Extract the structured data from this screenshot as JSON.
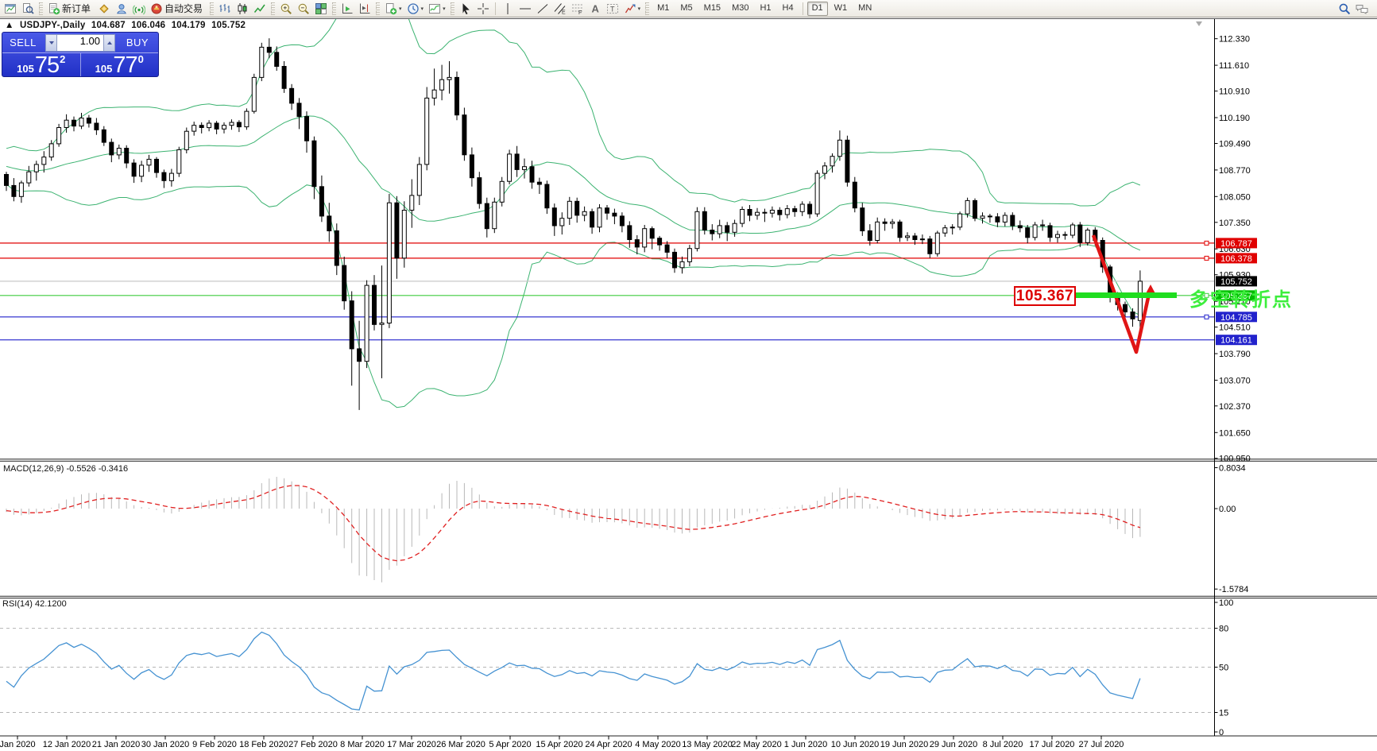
{
  "toolbar": {
    "groups": [
      {
        "name": "system",
        "items": [
          {
            "icon": "chart-window"
          },
          {
            "icon": "print-preview"
          }
        ]
      },
      {
        "name": "trade",
        "items": [
          {
            "icon": "new-order",
            "label": "新订单"
          },
          {
            "icon": "chart-wizard"
          },
          {
            "icon": "profiles"
          },
          {
            "icon": "signals"
          },
          {
            "icon": "auto-trading",
            "label": "自动交易"
          }
        ]
      },
      {
        "name": "chart-type",
        "items": [
          {
            "icon": "bar-chart"
          },
          {
            "icon": "candlestick-chart"
          },
          {
            "icon": "line-chart"
          }
        ]
      },
      {
        "name": "zoom",
        "items": [
          {
            "icon": "zoom-in"
          },
          {
            "icon": "zoom-out"
          },
          {
            "icon": "tile-windows"
          }
        ]
      },
      {
        "name": "scroll",
        "items": [
          {
            "icon": "auto-scroll"
          },
          {
            "icon": "chart-shift"
          }
        ]
      },
      {
        "name": "menus",
        "items": [
          {
            "icon": "new-order-menu",
            "caret": true
          },
          {
            "icon": "clock",
            "caret": true
          },
          {
            "icon": "indicators",
            "caret": true
          }
        ]
      },
      {
        "name": "objects",
        "items": [
          {
            "icon": "cursor"
          },
          {
            "icon": "crosshair"
          },
          {
            "icon": "sep"
          },
          {
            "icon": "vertical-line"
          },
          {
            "icon": "horizontal-line"
          },
          {
            "icon": "trend-line"
          },
          {
            "icon": "equidistant-channel"
          },
          {
            "icon": "fibonacci"
          },
          {
            "icon": "text"
          },
          {
            "icon": "text-label"
          },
          {
            "icon": "arrows-menu",
            "caret": true
          }
        ]
      }
    ],
    "timeframes": [
      "M1",
      "M5",
      "M15",
      "M30",
      "H1",
      "H4",
      "D1",
      "W1",
      "MN"
    ],
    "active_timeframe": "D1",
    "right_icons": [
      "search",
      "chat"
    ]
  },
  "symbol_line": {
    "symbol": "USDJPY-,Daily",
    "open": "104.687",
    "high": "106.046",
    "low": "104.179",
    "close": "105.752"
  },
  "trade_panel": {
    "sell_label": "SELL",
    "buy_label": "BUY",
    "volume": "1.00",
    "sell_price": {
      "prefix": "105",
      "main": "75",
      "sup": "2"
    },
    "buy_price": {
      "prefix": "105",
      "main": "77",
      "sup": "0"
    }
  },
  "chart_data": {
    "type": "candlestick",
    "symbol": "USDJPY-",
    "timeframe": "Daily",
    "ohlc_current": {
      "open": 104.687,
      "high": 106.046,
      "low": 104.179,
      "close": 105.752
    },
    "y_axis_ticks": [
      "112.330",
      "111.610",
      "110.910",
      "110.190",
      "109.490",
      "108.770",
      "108.050",
      "107.350",
      "106.630",
      "105.930",
      "105.210",
      "104.510",
      "103.790",
      "103.070",
      "102.370",
      "101.650",
      "100.950"
    ],
    "x_labels": [
      "Jan 2020",
      "12 Jan 2020",
      "21 Jan 2020",
      "30 Jan 2020",
      "9 Feb 2020",
      "18 Feb 2020",
      "27 Feb 2020",
      "8 Mar 2020",
      "17 Mar 2020",
      "26 Mar 2020",
      "5 Apr 2020",
      "15 Apr 2020",
      "24 Apr 2020",
      "4 May 2020",
      "13 May 2020",
      "22 May 2020",
      "1 Jun 2020",
      "10 Jun 2020",
      "19 Jun 2020",
      "29 Jun 2020",
      "8 Jul 2020",
      "17 Jul 2020",
      "27 Jul 2020"
    ],
    "candles": [
      [
        108.65,
        108.72,
        108.2,
        108.35
      ],
      [
        108.35,
        108.55,
        107.92,
        108.05
      ],
      [
        108.05,
        108.48,
        107.88,
        108.42
      ],
      [
        108.42,
        108.88,
        108.32,
        108.72
      ],
      [
        108.72,
        109.02,
        108.48,
        108.92
      ],
      [
        108.92,
        109.28,
        108.7,
        109.12
      ],
      [
        109.12,
        109.58,
        109.02,
        109.48
      ],
      [
        109.48,
        110.02,
        109.4,
        109.92
      ],
      [
        109.92,
        110.28,
        109.78,
        110.12
      ],
      [
        110.12,
        110.22,
        109.82,
        109.96
      ],
      [
        109.96,
        110.32,
        109.88,
        110.18
      ],
      [
        110.18,
        110.26,
        109.92,
        110.04
      ],
      [
        110.04,
        110.18,
        109.72,
        109.86
      ],
      [
        109.86,
        109.96,
        109.42,
        109.52
      ],
      [
        109.52,
        109.62,
        108.98,
        109.18
      ],
      [
        109.18,
        109.46,
        109.06,
        109.36
      ],
      [
        109.36,
        109.44,
        108.82,
        108.96
      ],
      [
        108.96,
        109.06,
        108.42,
        108.6
      ],
      [
        108.6,
        109.02,
        108.44,
        108.9
      ],
      [
        108.9,
        109.18,
        108.72,
        109.06
      ],
      [
        109.06,
        109.12,
        108.56,
        108.7
      ],
      [
        108.7,
        108.78,
        108.28,
        108.48
      ],
      [
        108.48,
        108.8,
        108.32,
        108.68
      ],
      [
        108.68,
        109.4,
        108.58,
        109.32
      ],
      [
        109.32,
        109.92,
        109.22,
        109.82
      ],
      [
        109.82,
        110.08,
        109.7,
        109.98
      ],
      [
        109.98,
        110.06,
        109.76,
        109.92
      ],
      [
        109.92,
        110.12,
        109.82,
        110.04
      ],
      [
        110.04,
        110.1,
        109.74,
        109.88
      ],
      [
        109.88,
        110.06,
        109.76,
        109.98
      ],
      [
        109.98,
        110.14,
        109.86,
        110.06
      ],
      [
        110.06,
        110.12,
        109.8,
        109.94
      ],
      [
        109.94,
        110.44,
        109.86,
        110.36
      ],
      [
        110.36,
        111.38,
        110.3,
        111.28
      ],
      [
        111.28,
        112.22,
        111.18,
        112.1
      ],
      [
        112.1,
        112.34,
        111.8,
        111.96
      ],
      [
        111.96,
        112.12,
        111.46,
        111.58
      ],
      [
        111.58,
        111.72,
        110.86,
        110.98
      ],
      [
        110.98,
        111.1,
        110.4,
        110.58
      ],
      [
        110.58,
        110.72,
        109.88,
        110.22
      ],
      [
        110.22,
        110.36,
        109.24,
        109.56
      ],
      [
        109.56,
        109.68,
        107.98,
        108.32
      ],
      [
        108.32,
        108.62,
        107.36,
        107.52
      ],
      [
        107.52,
        107.88,
        106.82,
        107.12
      ],
      [
        107.12,
        107.32,
        105.92,
        106.18
      ],
      [
        106.18,
        106.42,
        104.98,
        105.22
      ],
      [
        105.22,
        105.48,
        102.92,
        103.92
      ],
      [
        103.92,
        104.68,
        102.26,
        103.58
      ],
      [
        103.58,
        105.78,
        103.4,
        105.64
      ],
      [
        105.64,
        105.92,
        104.42,
        104.58
      ],
      [
        104.58,
        106.18,
        103.12,
        104.62
      ],
      [
        104.62,
        108.12,
        104.48,
        107.88
      ],
      [
        107.88,
        108.06,
        105.82,
        106.38
      ],
      [
        106.38,
        107.92,
        106.12,
        107.68
      ],
      [
        107.68,
        108.52,
        107.2,
        108.08
      ],
      [
        108.08,
        109.12,
        107.82,
        108.92
      ],
      [
        108.92,
        111.02,
        108.76,
        110.72
      ],
      [
        110.72,
        111.52,
        110.52,
        110.94
      ],
      [
        110.94,
        111.62,
        110.66,
        111.22
      ],
      [
        111.22,
        111.72,
        110.84,
        111.28
      ],
      [
        111.28,
        111.44,
        110.12,
        110.26
      ],
      [
        110.26,
        110.46,
        109.02,
        109.18
      ],
      [
        109.18,
        109.38,
        108.32,
        108.56
      ],
      [
        108.56,
        108.72,
        107.72,
        107.86
      ],
      [
        107.86,
        108.02,
        106.94,
        107.18
      ],
      [
        107.18,
        108.02,
        107.06,
        107.9
      ],
      [
        107.9,
        108.58,
        107.78,
        108.46
      ],
      [
        108.46,
        109.32,
        108.38,
        109.2
      ],
      [
        109.2,
        109.42,
        108.58,
        108.78
      ],
      [
        108.78,
        109.08,
        108.54,
        108.86
      ],
      [
        108.86,
        109.02,
        108.26,
        108.44
      ],
      [
        108.44,
        108.56,
        108.12,
        108.38
      ],
      [
        108.38,
        108.48,
        107.58,
        107.74
      ],
      [
        107.74,
        107.86,
        106.98,
        107.26
      ],
      [
        107.26,
        107.62,
        107.02,
        107.46
      ],
      [
        107.46,
        108.04,
        107.28,
        107.92
      ],
      [
        107.92,
        108.02,
        107.34,
        107.54
      ],
      [
        107.54,
        107.78,
        107.38,
        107.64
      ],
      [
        107.64,
        107.72,
        107.04,
        107.22
      ],
      [
        107.22,
        107.84,
        107.08,
        107.74
      ],
      [
        107.74,
        107.82,
        107.42,
        107.6
      ],
      [
        107.6,
        107.72,
        107.3,
        107.52
      ],
      [
        107.52,
        107.62,
        107.08,
        107.26
      ],
      [
        107.26,
        107.38,
        106.66,
        106.88
      ],
      [
        106.88,
        107.0,
        106.48,
        106.68
      ],
      [
        106.68,
        107.28,
        106.54,
        107.18
      ],
      [
        107.18,
        107.24,
        106.62,
        106.92
      ],
      [
        106.92,
        106.98,
        106.58,
        106.74
      ],
      [
        106.74,
        106.84,
        106.38,
        106.54
      ],
      [
        106.54,
        106.64,
        105.98,
        106.12
      ],
      [
        106.12,
        106.42,
        105.96,
        106.28
      ],
      [
        106.28,
        106.74,
        106.16,
        106.64
      ],
      [
        106.64,
        107.76,
        106.56,
        107.64
      ],
      [
        107.64,
        107.76,
        107.02,
        107.14
      ],
      [
        107.14,
        107.3,
        106.86,
        107.04
      ],
      [
        107.04,
        107.42,
        106.92,
        107.26
      ],
      [
        107.26,
        107.36,
        106.84,
        107.08
      ],
      [
        107.08,
        107.42,
        106.96,
        107.32
      ],
      [
        107.32,
        107.78,
        107.22,
        107.7
      ],
      [
        107.7,
        107.82,
        107.38,
        107.54
      ],
      [
        107.54,
        107.74,
        107.42,
        107.62
      ],
      [
        107.62,
        107.72,
        107.36,
        107.6
      ],
      [
        107.6,
        107.78,
        107.48,
        107.68
      ],
      [
        107.68,
        107.76,
        107.4,
        107.56
      ],
      [
        107.56,
        107.82,
        107.46,
        107.72
      ],
      [
        107.72,
        107.8,
        107.5,
        107.64
      ],
      [
        107.64,
        107.92,
        107.52,
        107.84
      ],
      [
        107.84,
        107.92,
        107.46,
        107.58
      ],
      [
        107.58,
        108.76,
        107.5,
        108.68
      ],
      [
        108.68,
        108.98,
        108.52,
        108.88
      ],
      [
        108.88,
        109.22,
        108.7,
        109.14
      ],
      [
        109.14,
        109.84,
        109.02,
        109.58
      ],
      [
        109.58,
        109.7,
        108.32,
        108.44
      ],
      [
        108.44,
        108.58,
        107.62,
        107.74
      ],
      [
        107.74,
        107.88,
        106.98,
        107.12
      ],
      [
        107.12,
        107.3,
        106.72,
        106.86
      ],
      [
        106.86,
        107.48,
        106.78,
        107.36
      ],
      [
        107.36,
        107.46,
        107.12,
        107.32
      ],
      [
        107.32,
        107.44,
        107.18,
        107.36
      ],
      [
        107.36,
        107.42,
        106.82,
        106.94
      ],
      [
        106.94,
        107.08,
        106.84,
        106.98
      ],
      [
        106.98,
        107.06,
        106.74,
        106.88
      ],
      [
        106.88,
        107.02,
        106.76,
        106.9
      ],
      [
        106.9,
        106.98,
        106.38,
        106.5
      ],
      [
        106.5,
        107.12,
        106.42,
        107.06
      ],
      [
        107.06,
        107.28,
        106.96,
        107.2
      ],
      [
        107.2,
        107.3,
        107.02,
        107.22
      ],
      [
        107.22,
        107.64,
        107.14,
        107.58
      ],
      [
        107.58,
        108.02,
        107.48,
        107.94
      ],
      [
        107.94,
        108.0,
        107.38,
        107.46
      ],
      [
        107.46,
        107.62,
        107.32,
        107.52
      ],
      [
        107.52,
        107.58,
        107.34,
        107.5
      ],
      [
        107.5,
        107.6,
        107.22,
        107.36
      ],
      [
        107.36,
        107.62,
        107.24,
        107.54
      ],
      [
        107.54,
        107.62,
        107.14,
        107.26
      ],
      [
        107.26,
        107.4,
        107.08,
        107.2
      ],
      [
        107.2,
        107.28,
        106.78,
        106.94
      ],
      [
        106.94,
        107.36,
        106.86,
        107.28
      ],
      [
        107.28,
        107.42,
        107.12,
        107.26
      ],
      [
        107.26,
        107.34,
        106.82,
        106.94
      ],
      [
        106.94,
        107.12,
        106.8,
        107.02
      ],
      [
        107.02,
        107.1,
        106.88,
        107.0
      ],
      [
        107.0,
        107.34,
        106.92,
        107.28
      ],
      [
        107.28,
        107.36,
        106.68,
        106.8
      ],
      [
        106.8,
        107.2,
        106.72,
        107.14
      ],
      [
        107.14,
        107.22,
        106.72,
        106.86
      ],
      [
        106.86,
        106.94,
        105.98,
        106.14
      ],
      [
        106.14,
        106.2,
        105.18,
        105.38
      ],
      [
        105.38,
        105.46,
        104.96,
        105.12
      ],
      [
        105.12,
        105.2,
        104.78,
        104.92
      ],
      [
        104.92,
        105.02,
        104.52,
        104.73
      ],
      [
        104.687,
        106.046,
        104.179,
        105.752
      ]
    ],
    "price_lines": [
      {
        "price": 106.787,
        "color": "#e00000",
        "badge": "#e00000",
        "badge_text": "106.787",
        "anchor": true
      },
      {
        "price": 106.378,
        "color": "#e00000",
        "badge": "#e00000",
        "badge_text": "106.378",
        "anchor": true
      },
      {
        "price": 105.752,
        "color": "#c9c9c9",
        "badge": "#000000",
        "badge_text": "105.752",
        "anchor": false
      },
      {
        "price": 105.367,
        "color": "#3ecc3e",
        "badge": "#00bb00",
        "badge_text": "105.367",
        "anchor": true
      },
      {
        "price": 104.785,
        "color": "#2222cc",
        "badge": "#2222cc",
        "badge_text": "104.785",
        "anchor": true
      },
      {
        "price": 104.161,
        "color": "#2222cc",
        "badge": "#2222cc",
        "badge_text": "104.161",
        "anchor": false
      }
    ],
    "indicators": {
      "bollinger": {
        "label": "Bollinger Bands",
        "period": 20,
        "deviation": 2,
        "color": "#3CB371"
      },
      "macd": {
        "label": "MACD(12,26,9)",
        "values": "-0.5526 -0.3416",
        "axis_ticks": [
          "0.8034",
          "0.00",
          "-1.5784"
        ],
        "histogram_color": "#b8b8b8",
        "signal_color": "#e02020"
      },
      "rsi": {
        "label": "RSI(14)",
        "value": "42.1200",
        "axis_ticks": [
          "100",
          "80",
          "50",
          "15",
          "0"
        ],
        "levels": [
          80,
          50,
          15
        ],
        "color": "#4592d2"
      }
    },
    "annotations": {
      "price_label": {
        "text": "105.367",
        "color": "#dd0000"
      },
      "note": {
        "text": "多空转折点",
        "color": "#3dee3d"
      },
      "turn_segment_price": 105.367,
      "arrow_color": "#e01515"
    }
  }
}
